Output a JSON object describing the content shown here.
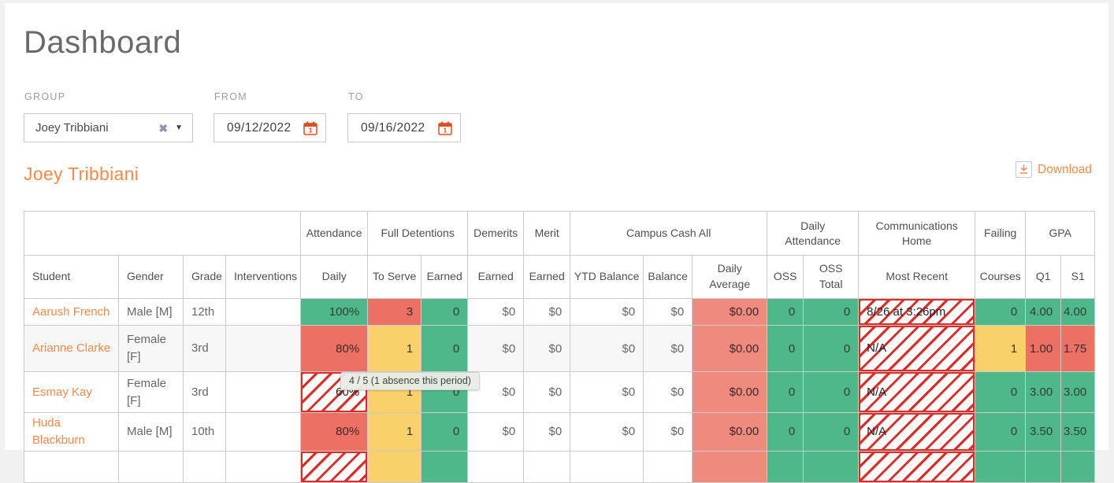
{
  "page": {
    "title": "Dashboard"
  },
  "filters": {
    "group": {
      "label": "GROUP",
      "value": "Joey Tribbiani"
    },
    "from": {
      "label": "FROM",
      "value": "09/12/2022"
    },
    "to": {
      "label": "TO",
      "value": "09/16/2022"
    }
  },
  "section": {
    "heading": "Joey Tribbiani",
    "download_label": "Download"
  },
  "tooltip": {
    "text": "4 / 5 (1 absence this period)"
  },
  "icons": {
    "clear": "✖",
    "caret": "▼"
  },
  "colors": {
    "green": "#4fb88b",
    "red": "#ec7164",
    "redlight": "#ee8a7e",
    "yellow": "#f8d16b",
    "hatch": "#e12a26",
    "orange": "#f68b4a",
    "link": "#f28b4a",
    "calicon": "#e04e1f",
    "clearicon": "#8b99ac"
  },
  "table": {
    "groups": [
      {
        "label": "",
        "span": 4
      },
      {
        "label": "Attendance",
        "span": 1
      },
      {
        "label": "Full Detentions",
        "span": 2
      },
      {
        "label": "Demerits",
        "span": 1
      },
      {
        "label": "Merit",
        "span": 1
      },
      {
        "label": "Campus Cash All",
        "span": 3
      },
      {
        "label": "Daily Attendance",
        "span": 2
      },
      {
        "label": "Communications Home",
        "span": 1
      },
      {
        "label": "Failing",
        "span": 1
      },
      {
        "label": "GPA",
        "span": 2
      }
    ],
    "columns": [
      "Student",
      "Gender",
      "Grade",
      "Interventions",
      "Daily",
      "To Serve",
      "Earned",
      "Earned",
      "Earned",
      "YTD Balance",
      "Balance",
      "Daily Average",
      "OSS",
      "OSS Total",
      "Most Recent",
      "Courses",
      "Q1",
      "S1"
    ],
    "rows": [
      {
        "shaded": false,
        "cells": [
          {
            "text": "Aarush French"
          },
          {
            "text": "Male [M]"
          },
          {
            "text": "12th"
          },
          {
            "text": ""
          },
          {
            "text": "100%",
            "bg": "green",
            "align": "right"
          },
          {
            "text": "3",
            "bg": "red",
            "align": "right"
          },
          {
            "text": "0",
            "bg": "green",
            "align": "right"
          },
          {
            "text": "$0",
            "align": "right"
          },
          {
            "text": "$0",
            "align": "right"
          },
          {
            "text": "$0",
            "align": "right"
          },
          {
            "text": "$0",
            "align": "right"
          },
          {
            "text": "$0.00",
            "bg": "redlight",
            "align": "right"
          },
          {
            "text": "0",
            "bg": "green",
            "align": "right"
          },
          {
            "text": "0",
            "bg": "green",
            "align": "right"
          },
          {
            "text": "8/26 at 3:26pm",
            "bg": "hatch"
          },
          {
            "text": "0",
            "bg": "green",
            "align": "right"
          },
          {
            "text": "4.00",
            "bg": "green",
            "align": "right"
          },
          {
            "text": "4.00",
            "bg": "green",
            "align": "right"
          }
        ]
      },
      {
        "shaded": true,
        "cells": [
          {
            "text": "Arianne Clarke"
          },
          {
            "text": "Female [F]"
          },
          {
            "text": "3rd"
          },
          {
            "text": ""
          },
          {
            "text": "80%",
            "bg": "red",
            "align": "right"
          },
          {
            "text": "1",
            "bg": "yellow",
            "align": "right"
          },
          {
            "text": "0",
            "bg": "green",
            "align": "right"
          },
          {
            "text": "$0",
            "align": "right"
          },
          {
            "text": "$0",
            "align": "right"
          },
          {
            "text": "$0",
            "align": "right"
          },
          {
            "text": "$0",
            "align": "right"
          },
          {
            "text": "$0.00",
            "bg": "redlight",
            "align": "right"
          },
          {
            "text": "0",
            "bg": "green",
            "align": "right"
          },
          {
            "text": "0",
            "bg": "green",
            "align": "right"
          },
          {
            "text": "N/A",
            "bg": "hatch"
          },
          {
            "text": "1",
            "bg": "yellow",
            "align": "right"
          },
          {
            "text": "1.00",
            "bg": "red",
            "align": "right"
          },
          {
            "text": "1.75",
            "bg": "red",
            "align": "right"
          }
        ]
      },
      {
        "shaded": false,
        "cells": [
          {
            "text": "Esmay Kay"
          },
          {
            "text": "Female [F]"
          },
          {
            "text": "3rd"
          },
          {
            "text": ""
          },
          {
            "text": "60%",
            "bg": "hatch",
            "align": "right"
          },
          {
            "text": "1",
            "bg": "yellow",
            "align": "right"
          },
          {
            "text": "0",
            "bg": "green",
            "align": "right"
          },
          {
            "text": "$0",
            "align": "right"
          },
          {
            "text": "$0",
            "align": "right"
          },
          {
            "text": "$0",
            "align": "right"
          },
          {
            "text": "$0",
            "align": "right"
          },
          {
            "text": "$0.00",
            "bg": "redlight",
            "align": "right"
          },
          {
            "text": "0",
            "bg": "green",
            "align": "right"
          },
          {
            "text": "0",
            "bg": "green",
            "align": "right"
          },
          {
            "text": "N/A",
            "bg": "hatch"
          },
          {
            "text": "0",
            "bg": "green",
            "align": "right"
          },
          {
            "text": "3.00",
            "bg": "green",
            "align": "right"
          },
          {
            "text": "3.00",
            "bg": "green",
            "align": "right"
          }
        ]
      },
      {
        "shaded": false,
        "cells": [
          {
            "text": "Huda Blackburn"
          },
          {
            "text": "Male [M]"
          },
          {
            "text": "10th"
          },
          {
            "text": ""
          },
          {
            "text": "80%",
            "bg": "red",
            "align": "right"
          },
          {
            "text": "1",
            "bg": "yellow",
            "align": "right"
          },
          {
            "text": "0",
            "bg": "green",
            "align": "right"
          },
          {
            "text": "$0",
            "align": "right"
          },
          {
            "text": "$0",
            "align": "right"
          },
          {
            "text": "$0",
            "align": "right"
          },
          {
            "text": "$0",
            "align": "right"
          },
          {
            "text": "$0.00",
            "bg": "redlight",
            "align": "right"
          },
          {
            "text": "0",
            "bg": "green",
            "align": "right"
          },
          {
            "text": "0",
            "bg": "green",
            "align": "right"
          },
          {
            "text": "N/A",
            "bg": "hatch"
          },
          {
            "text": "0",
            "bg": "green",
            "align": "right"
          },
          {
            "text": "3.50",
            "bg": "green",
            "align": "right"
          },
          {
            "text": "3.50",
            "bg": "green",
            "align": "right"
          }
        ]
      },
      {
        "shaded": false,
        "cells": [
          {
            "text": ""
          },
          {
            "text": ""
          },
          {
            "text": ""
          },
          {
            "text": ""
          },
          {
            "text": "",
            "bg": "hatch"
          },
          {
            "text": "",
            "bg": "yellow"
          },
          {
            "text": "",
            "bg": "green"
          },
          {
            "text": ""
          },
          {
            "text": ""
          },
          {
            "text": ""
          },
          {
            "text": ""
          },
          {
            "text": "",
            "bg": "redlight"
          },
          {
            "text": "",
            "bg": "green"
          },
          {
            "text": "",
            "bg": "green"
          },
          {
            "text": "",
            "bg": "hatch"
          },
          {
            "text": "",
            "bg": "green"
          },
          {
            "text": "",
            "bg": "green"
          },
          {
            "text": "",
            "bg": "green"
          }
        ]
      }
    ]
  }
}
